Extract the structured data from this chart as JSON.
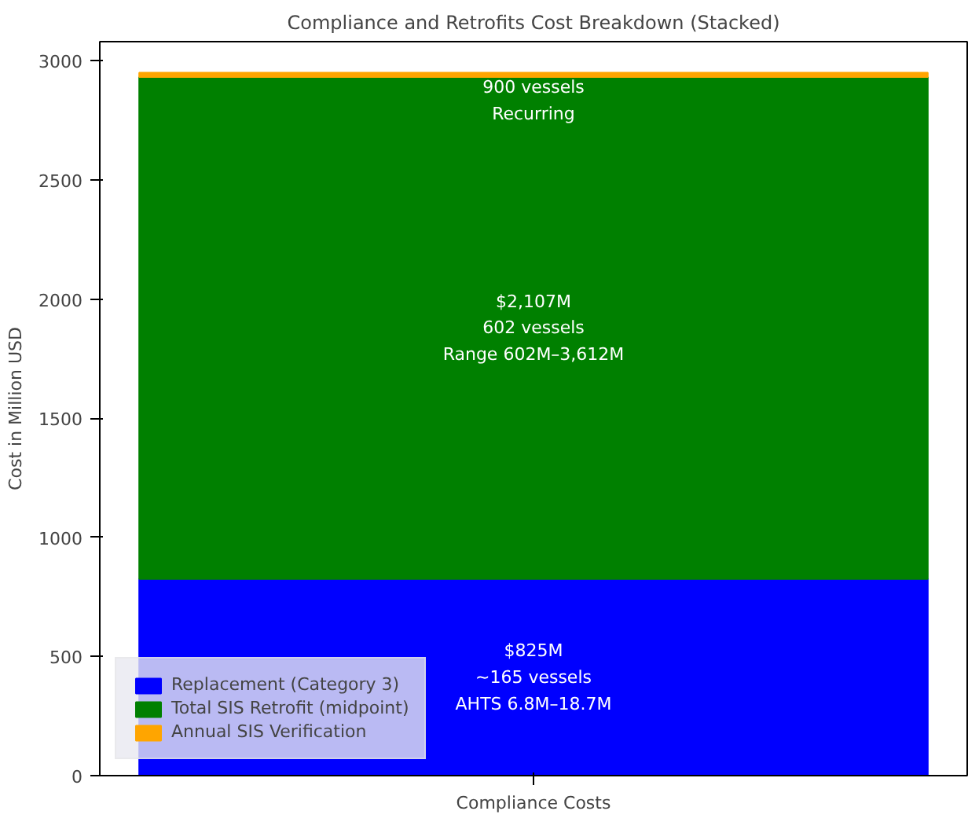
{
  "chart_data": {
    "type": "bar",
    "title": "Compliance and Retrofits Cost Breakdown (Stacked)",
    "ylabel": "Cost in Million USD",
    "xlabel": "Compliance Costs",
    "categories": [
      null
    ],
    "stacked": true,
    "series": [
      {
        "name": "Replacement (Category 3)",
        "color": "#0000ff",
        "values": [
          825
        ]
      },
      {
        "name": "Total SIS Retrofit (midpoint)",
        "color": "#008000",
        "values": [
          2107
        ]
      },
      {
        "name": "Annual SIS Verification",
        "color": "#ffa500",
        "values": [
          18
        ]
      }
    ],
    "ylim": [
      0,
      3080
    ],
    "yticks": [
      0,
      500,
      1000,
      1500,
      2000,
      2500,
      3000
    ],
    "annotations": [
      "$825M\n~165 vessels\nAHTS 6.8M–18.7M",
      "$2,107M\n602 vessels\nRange 602M–3,612M",
      "900 vessels\nRecurring"
    ],
    "grid": false,
    "legend": "bottom left"
  }
}
